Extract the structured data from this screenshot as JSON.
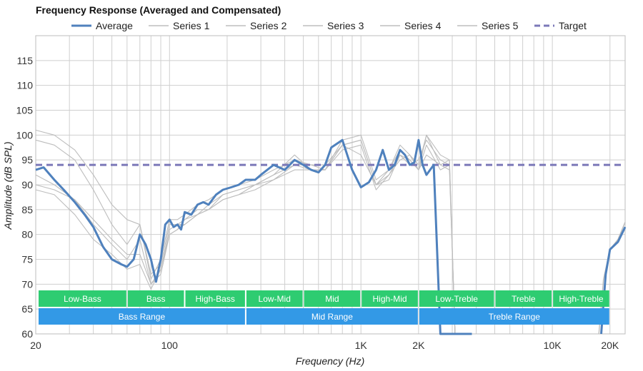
{
  "chart_data": {
    "type": "line",
    "title": "Frequency Response (Averaged and Compensated)",
    "xlabel": "Frequency (Hz)",
    "ylabel": "Amplitude (dB SPL)",
    "x_scale": "log",
    "xlim": [
      20,
      24000
    ],
    "ylim": [
      60,
      120
    ],
    "x_ticks": [
      {
        "value": 20,
        "label": "20"
      },
      {
        "value": 100,
        "label": "100"
      },
      {
        "value": 1000,
        "label": "1K"
      },
      {
        "value": 2000,
        "label": "2K"
      },
      {
        "value": 10000,
        "label": "10K"
      },
      {
        "value": 20000,
        "label": "20K"
      }
    ],
    "y_ticks": [
      60,
      65,
      70,
      75,
      80,
      85,
      90,
      95,
      100,
      105,
      110,
      115
    ],
    "grid": true,
    "legend_position": "top",
    "colors": {
      "average": "#4f81bd",
      "series": "#bdbdbd",
      "target": "#7b78b8",
      "band_green": "#2ecc71",
      "band_blue": "#3399e6"
    },
    "series": [
      {
        "name": "Average",
        "role": "average",
        "x": [
          20,
          22,
          25,
          28,
          32,
          36,
          40,
          45,
          50,
          56,
          60,
          65,
          70,
          75,
          80,
          85,
          90,
          95,
          100,
          105,
          110,
          115,
          120,
          130,
          140,
          150,
          160,
          175,
          190,
          210,
          230,
          250,
          280,
          300,
          350,
          400,
          450,
          500,
          550,
          600,
          650,
          700,
          800,
          900,
          1000,
          1100,
          1200,
          1300,
          1400,
          1500,
          1600,
          1700,
          1800,
          1900,
          2000,
          2100,
          2200,
          2400,
          2600,
          2800,
          3000,
          3200,
          3500,
          3800
        ],
        "y": [
          93,
          93.5,
          91,
          89,
          86.5,
          84,
          81.5,
          77.5,
          75,
          74,
          73.5,
          75,
          80,
          78,
          75,
          70.5,
          75,
          82,
          83,
          81.5,
          82,
          81,
          84.5,
          84,
          86,
          86.5,
          86,
          88,
          89,
          89.5,
          90,
          91,
          91,
          92,
          94,
          93,
          95,
          94,
          93,
          92.5,
          94,
          97.5,
          99,
          93,
          89.5,
          90.5,
          93,
          97,
          93,
          94,
          97,
          96,
          94,
          94.5,
          99,
          94,
          92,
          94,
          60,
          60,
          60,
          60,
          60,
          60
        ]
      },
      {
        "name": "Series 1",
        "role": "series",
        "x": [
          20,
          25,
          32,
          40,
          50,
          60,
          70,
          80,
          90,
          100,
          110,
          120,
          140,
          160,
          190,
          230,
          280,
          350,
          450,
          550,
          650,
          800,
          1000,
          1200,
          1400,
          1600,
          1800,
          2000,
          2200,
          2600,
          2900,
          3100
        ],
        "y": [
          99,
          98,
          95,
          89,
          82,
          78,
          82,
          71,
          75,
          83,
          83,
          84,
          86,
          87,
          89,
          90,
          91,
          93,
          95,
          94,
          94,
          98,
          96,
          90,
          92,
          95,
          96,
          93,
          96,
          94,
          95,
          60
        ]
      },
      {
        "name": "Series 2",
        "role": "series",
        "x": [
          20,
          25,
          32,
          40,
          50,
          60,
          70,
          80,
          90,
          100,
          110,
          120,
          140,
          160,
          190,
          230,
          280,
          350,
          450,
          550,
          650,
          800,
          1000,
          1200,
          1400,
          1600,
          1800,
          2000,
          2200,
          2600,
          2900,
          3100
        ],
        "y": [
          101,
          100,
          97,
          92,
          86,
          83,
          82,
          72,
          74,
          82,
          82,
          83,
          85,
          85,
          88,
          89,
          90,
          92,
          96,
          93,
          93,
          99,
          100,
          91,
          93,
          98,
          96,
          94,
          100,
          96,
          95,
          60
        ]
      },
      {
        "name": "Series 3",
        "role": "series",
        "x": [
          20,
          25,
          32,
          40,
          50,
          60,
          70,
          80,
          90,
          100,
          110,
          120,
          140,
          160,
          190,
          230,
          280,
          350,
          450,
          550,
          650,
          800,
          1000,
          1200,
          1400,
          1600,
          1800,
          2000,
          2200,
          2600,
          2900,
          3100
        ],
        "y": [
          90,
          89,
          87,
          82,
          78,
          75,
          79,
          70,
          73,
          80,
          81,
          82,
          84,
          85,
          87,
          88,
          89,
          91,
          93,
          93,
          93,
          97,
          98,
          89,
          92,
          96,
          95,
          93,
          98,
          93,
          94,
          60
        ]
      },
      {
        "name": "Series 4",
        "role": "series",
        "x": [
          20,
          25,
          32,
          40,
          50,
          60,
          70,
          80,
          90,
          100,
          110,
          120,
          140,
          160,
          190,
          230,
          280,
          350,
          450,
          550,
          650,
          800,
          1000,
          1200,
          1400,
          1600,
          1800,
          2000,
          2200,
          2600,
          2900,
          3100
        ],
        "y": [
          92,
          90,
          87,
          83,
          79,
          76,
          76,
          70,
          72,
          80,
          81,
          83,
          84,
          86,
          88,
          89,
          90,
          92,
          94,
          93,
          93,
          98,
          99,
          90,
          91,
          96,
          94,
          95,
          99,
          95,
          94,
          60
        ]
      },
      {
        "name": "Series 5",
        "role": "series",
        "x": [
          20,
          25,
          32,
          40,
          50,
          60,
          70,
          80,
          90,
          100,
          110,
          120,
          140,
          160,
          190,
          230,
          280,
          350,
          450,
          550,
          650,
          800,
          1000,
          1200,
          1400,
          1600,
          1800,
          2000,
          2200,
          2600,
          2900,
          3100
        ],
        "y": [
          89,
          88,
          84,
          79,
          76,
          73,
          74,
          69,
          73,
          81,
          82,
          82,
          84,
          85,
          87,
          88,
          90,
          91,
          94,
          94,
          93,
          98,
          99,
          90,
          93,
          97,
          95,
          93,
          100,
          94,
          93,
          60
        ]
      },
      {
        "name": "Target",
        "role": "target",
        "x": [
          20,
          24000
        ],
        "y": [
          94,
          94
        ]
      }
    ],
    "right_edge_curves": {
      "average": {
        "x": [
          18000,
          19000,
          20000,
          22000,
          24000
        ],
        "y": [
          60,
          72,
          77,
          78.5,
          81.5
        ]
      },
      "series": {
        "x": [
          17500,
          18500,
          20000,
          22000,
          24000
        ],
        "y": [
          60,
          71,
          77,
          79,
          82.5
        ]
      }
    },
    "bands": [
      {
        "label": "Low-Bass",
        "from": 20,
        "to": 60,
        "row": 1,
        "color": "green"
      },
      {
        "label": "Bass",
        "from": 60,
        "to": 120,
        "row": 1,
        "color": "green"
      },
      {
        "label": "High-Bass",
        "from": 120,
        "to": 250,
        "row": 1,
        "color": "green"
      },
      {
        "label": "Low-Mid",
        "from": 250,
        "to": 500,
        "row": 1,
        "color": "green"
      },
      {
        "label": "Mid",
        "from": 500,
        "to": 1000,
        "row": 1,
        "color": "green"
      },
      {
        "label": "High-Mid",
        "from": 1000,
        "to": 2000,
        "row": 1,
        "color": "green"
      },
      {
        "label": "Low-Treble",
        "from": 2000,
        "to": 5000,
        "row": 1,
        "color": "green"
      },
      {
        "label": "Treble",
        "from": 5000,
        "to": 10000,
        "row": 1,
        "color": "green"
      },
      {
        "label": "High-Treble",
        "from": 10000,
        "to": 20000,
        "row": 1,
        "color": "green"
      },
      {
        "label": "Bass Range",
        "from": 20,
        "to": 250,
        "row": 2,
        "color": "blue"
      },
      {
        "label": "Mid Range",
        "from": 250,
        "to": 2000,
        "row": 2,
        "color": "blue"
      },
      {
        "label": "Treble Range",
        "from": 2000,
        "to": 20000,
        "row": 2,
        "color": "blue"
      }
    ]
  }
}
